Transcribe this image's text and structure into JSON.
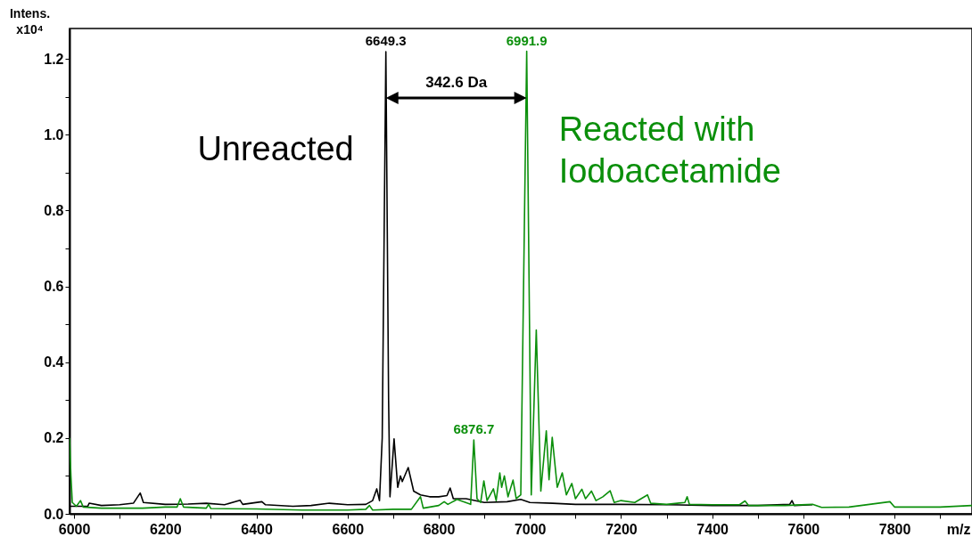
{
  "chart_data": {
    "type": "line",
    "xlabel": "m/z",
    "ylabel": "Intens.\nx10⁴",
    "xlim": [
      5990,
      7970
    ],
    "ylim": [
      0,
      1.28
    ],
    "xticks": [
      6000,
      {
        "value": 6100,
        "label": null
      },
      6200,
      {
        "value": 6300,
        "label": null
      },
      6400,
      {
        "value": 6500,
        "label": null
      },
      6600,
      {
        "value": 6700,
        "label": null
      },
      6800,
      {
        "value": 6900,
        "label": null
      },
      7000,
      {
        "value": 7100,
        "label": null
      },
      7200,
      {
        "value": 7300,
        "label": null
      },
      7400,
      {
        "value": 7500,
        "label": null
      },
      7600,
      {
        "value": 7700,
        "label": null
      },
      7800,
      {
        "value": 7900,
        "label": null
      }
    ],
    "yticks": [
      {
        "value": 0,
        "label": "0.0"
      },
      {
        "value": 0.1,
        "label": null
      },
      0.2,
      {
        "value": 0.3,
        "label": null
      },
      0.4,
      {
        "value": 0.5,
        "label": null
      },
      0.6,
      {
        "value": 0.7,
        "label": null
      },
      0.8,
      {
        "value": 0.9,
        "label": null
      },
      {
        "value": 1,
        "label": "1.0"
      },
      {
        "value": 1.1,
        "label": null
      },
      1.2
    ],
    "grid": false,
    "marker": "none",
    "line_style": "solid",
    "series": [
      {
        "name": "Unreacted",
        "color": "#000000",
        "x": [
          5992,
          6030,
          6033,
          6060,
          6100,
          6130,
          6145,
          6152,
          6200,
          6250,
          6290,
          6330,
          6364,
          6370,
          6412,
          6420,
          6480,
          6520,
          6560,
          6600,
          6640,
          6655,
          6664,
          6670,
          6676,
          6684,
          6690,
          6693,
          6702,
          6710,
          6716,
          6720,
          6733,
          6745,
          6760,
          6780,
          6800,
          6818,
          6825,
          6832,
          6860,
          6900,
          6950,
          6980,
          7000,
          7050,
          7100,
          7200,
          7300,
          7400,
          7500,
          7570,
          7575,
          7580,
          7620
        ],
        "values": [
          0.02,
          0.02,
          0.028,
          0.022,
          0.024,
          0.028,
          0.055,
          0.03,
          0.025,
          0.026,
          0.028,
          0.024,
          0.036,
          0.025,
          0.032,
          0.024,
          0.02,
          0.022,
          0.028,
          0.024,
          0.025,
          0.035,
          0.066,
          0.035,
          0.2,
          1.219,
          0.3,
          0.045,
          0.198,
          0.07,
          0.1,
          0.085,
          0.122,
          0.06,
          0.05,
          0.045,
          0.045,
          0.048,
          0.068,
          0.04,
          0.04,
          0.03,
          0.032,
          0.038,
          0.03,
          0.028,
          0.025,
          0.025,
          0.024,
          0.022,
          0.022,
          0.025,
          0.035,
          0.022,
          0.024
        ]
      },
      {
        "name": "Reacted with\nIodoacetamide",
        "color": "#0b8f0b",
        "x": [
          5990,
          5993,
          5996,
          6005,
          6014,
          6020,
          6060,
          6100,
          6150,
          6200,
          6226,
          6233,
          6240,
          6290,
          6295,
          6300,
          6400,
          6500,
          6600,
          6640,
          6648,
          6655,
          6700,
          6740,
          6760,
          6766,
          6800,
          6812,
          6820,
          6840,
          6870,
          6877,
          6884,
          6892,
          6899,
          6906,
          6920,
          6926,
          6934,
          6938,
          6944,
          6952,
          6963,
          6970,
          6980,
          6993,
          7003,
          7014,
          7024,
          7036,
          7042,
          7049,
          7060,
          7071,
          7080,
          7092,
          7100,
          7114,
          7122,
          7135,
          7145,
          7160,
          7176,
          7185,
          7200,
          7230,
          7258,
          7265,
          7300,
          7340,
          7345,
          7350,
          7400,
          7460,
          7472,
          7480,
          7560,
          7620,
          7640,
          7700,
          7790,
          7800,
          7900,
          7970
        ],
        "values": [
          0.2,
          0.1,
          0.03,
          0.02,
          0.035,
          0.018,
          0.015,
          0.015,
          0.015,
          0.018,
          0.018,
          0.04,
          0.018,
          0.015,
          0.025,
          0.014,
          0.013,
          0.01,
          0.01,
          0.012,
          0.022,
          0.01,
          0.012,
          0.012,
          0.045,
          0.015,
          0.022,
          0.032,
          0.025,
          0.038,
          0.025,
          0.195,
          0.04,
          0.03,
          0.087,
          0.035,
          0.066,
          0.035,
          0.108,
          0.07,
          0.1,
          0.045,
          0.089,
          0.04,
          0.05,
          1.22,
          0.05,
          0.485,
          0.06,
          0.219,
          0.09,
          0.202,
          0.07,
          0.108,
          0.05,
          0.08,
          0.04,
          0.065,
          0.04,
          0.06,
          0.035,
          0.045,
          0.061,
          0.03,
          0.035,
          0.03,
          0.05,
          0.028,
          0.025,
          0.03,
          0.045,
          0.025,
          0.024,
          0.024,
          0.034,
          0.022,
          0.022,
          0.025,
          0.017,
          0.018,
          0.032,
          0.018,
          0.018,
          0.022
        ]
      }
    ],
    "annotations": [
      {
        "text": "6649.3",
        "x": 6684,
        "y": 1.219
      },
      {
        "text": "6991.9",
        "x": 6993,
        "y": 1.22
      },
      {
        "text": "6876.7",
        "x": 6877,
        "y": 0.195
      },
      "342.6 Da"
    ]
  }
}
